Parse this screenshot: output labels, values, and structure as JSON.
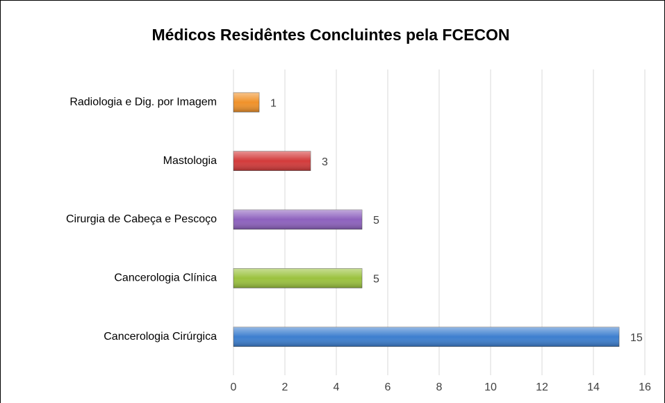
{
  "chart_data": {
    "type": "bar",
    "orientation": "horizontal",
    "title": "Médicos Residêntes Concluintes pela FCECON",
    "categories": [
      "Radiologia e Dig. por Imagem",
      "Mastologia",
      "Cirurgia de Cabeça e Pescoço",
      "Cancerologia Clínica",
      "Cancerologia Cirúrgica"
    ],
    "values": [
      1,
      3,
      5,
      5,
      15
    ],
    "colors": [
      "#f0922a",
      "#d33b3b",
      "#8e62be",
      "#9bc23f",
      "#3d7fcf"
    ],
    "xlim": [
      0,
      16
    ],
    "xticks": [
      0,
      2,
      4,
      6,
      8,
      10,
      12,
      14,
      16
    ],
    "grid": true
  }
}
